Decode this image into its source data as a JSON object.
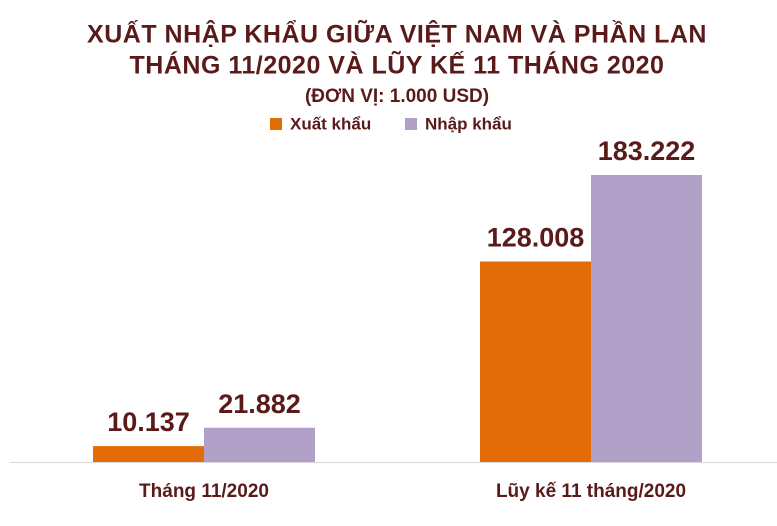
{
  "chart_data": {
    "type": "bar",
    "title": "XUẤT NHẬP KHẨU GIỮA VIỆT NAM VÀ PHẦN LAN",
    "subtitle": "THÁNG 11/2020 VÀ LŨY KẾ 11 THÁNG 2020",
    "unit_note": "(ĐƠN VỊ: 1.000 USD)",
    "categories": [
      "Tháng 11/2020",
      "Lũy kế 11 tháng/2020"
    ],
    "series": [
      {
        "name": "Xuất khẩu",
        "color": "#e36c09",
        "values": [
          10137,
          128008
        ],
        "value_labels": [
          "10.137",
          "128.008"
        ]
      },
      {
        "name": "Nhập khẩu",
        "color": "#b1a0c7",
        "values": [
          21882,
          183222
        ],
        "value_labels": [
          "21.882",
          "183.222"
        ]
      }
    ],
    "legend": "top"
  }
}
